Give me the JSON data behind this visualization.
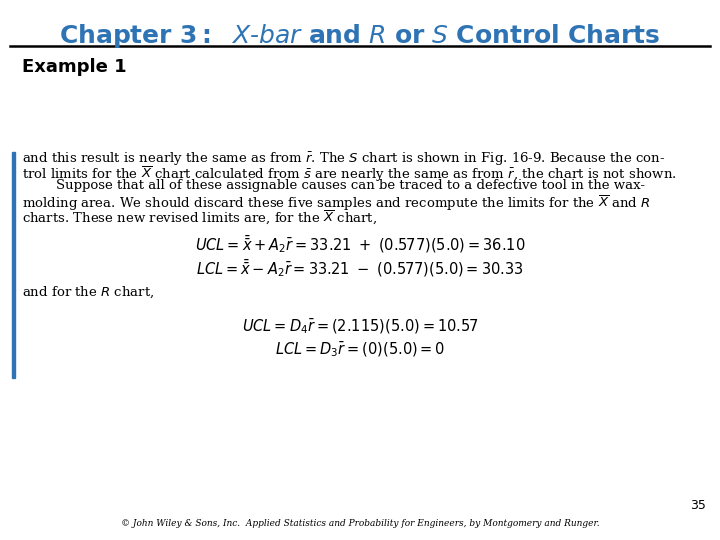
{
  "title_color": "#2E74B5",
  "title_fontsize": 18,
  "example_label": "Example 1",
  "example_fontsize": 13,
  "body_fontsize": 9.5,
  "eq_fontsize": 10.5,
  "page_number": "35",
  "footer": "© John Wiley & Sons, Inc.  Applied Statistics and Probability for Engineers, by Montgomery and Runger.",
  "bg_color": "#FFFFFF",
  "text_color": "#000000",
  "left_bar_color": "#2E74B5",
  "line_color": "#000000",
  "body_lines": [
    "and this result is nearly the same as from $\\bar{r}$. The $S$ chart is shown in Fig. 16-9. Because the con-",
    "trol limits for the $\\overline{X}$ chart calculated from $\\bar{s}$ are nearly the same as from $\\bar{r}$, the chart is not shown.",
    "        Suppose that all of these assignable causes can be traced to a defective tool in the wax-",
    "molding area. We should discard these five samples and recompute the limits for the $\\overline{X}$ and $R$",
    "charts. These new revised limits are, for the $\\overline{X}$ chart,"
  ],
  "eq1": "$UCL = \\bar{\\bar{x}} + A_2\\bar{r} = 33.21\\ +\\ (0.577)(5.0) = 36.10$",
  "eq2": "$LCL = \\bar{\\bar{x}} - A_2\\bar{r} = 33.21\\ -\\ (0.577)(5.0) = 30.33$",
  "r_chart_label": "and for the $R$ chart,",
  "eq3": "$UCL = D_4\\bar{r} = (2.115)(5.0) = 10.57$",
  "eq4": "$LCL = D_3\\bar{r} = (0)(5.0) = 0$"
}
